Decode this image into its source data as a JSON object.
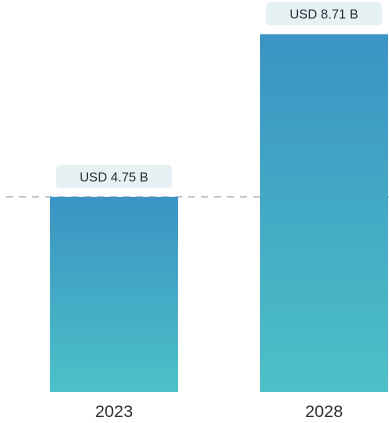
{
  "chart_data": {
    "type": "bar",
    "categories": [
      "2023",
      "2028"
    ],
    "values": [
      4.75,
      8.71
    ],
    "value_labels": [
      "USD 4.75 B",
      "USD 8.71 B"
    ],
    "title": "",
    "xlabel": "",
    "ylabel": "",
    "ylim": [
      0,
      9.3
    ],
    "grid": false,
    "reference_line": {
      "value": 4.75,
      "style": "dashed"
    },
    "colors": {
      "bar_top": "#3a93c4",
      "bar_bottom": "#4cc1c6",
      "label_bg": "#e6f1f4",
      "reference_line": "#b5bec5"
    }
  }
}
